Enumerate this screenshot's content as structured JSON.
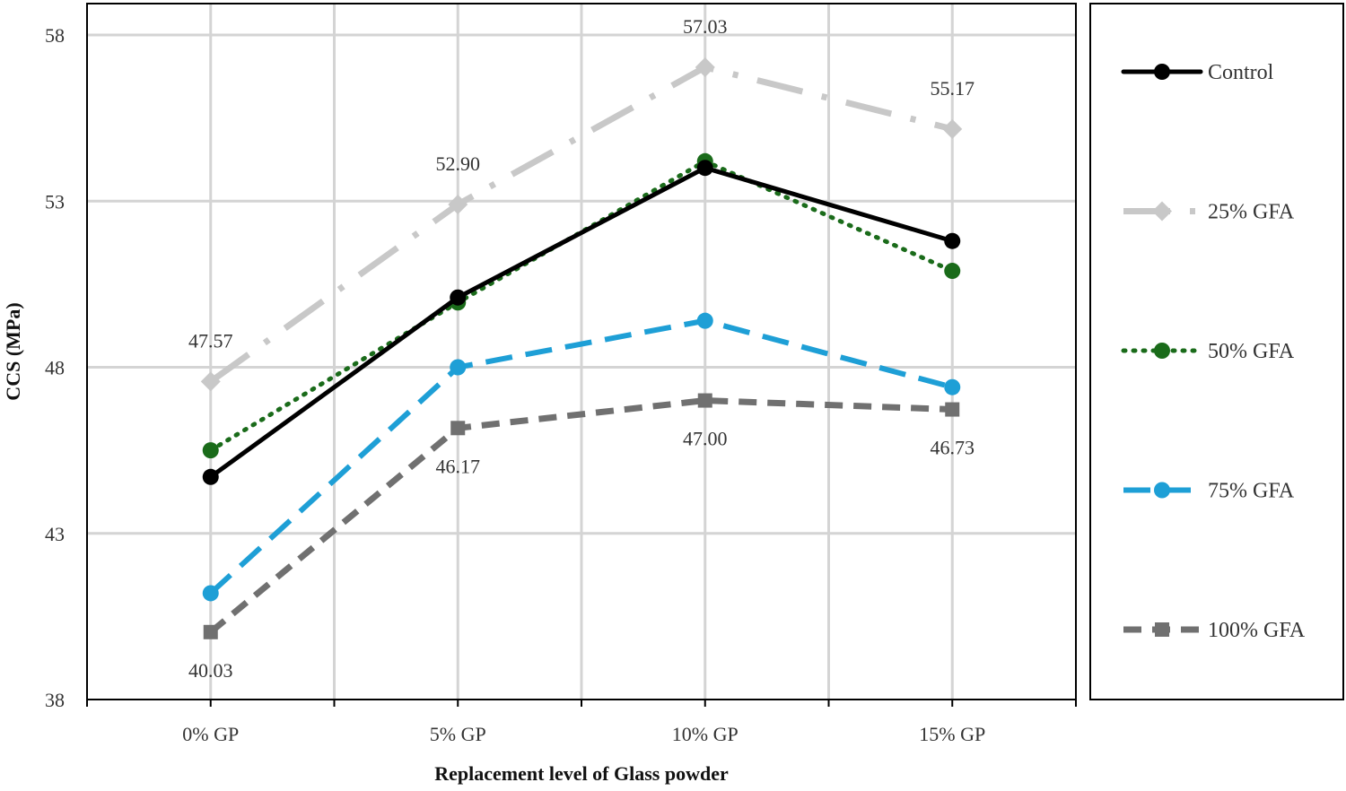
{
  "chart_data": {
    "type": "line",
    "title": "",
    "xlabel": "Replacement level of Glass powder",
    "ylabel": "CCS (MPa)",
    "ylim": [
      38,
      58
    ],
    "yticks": [
      38,
      43,
      48,
      53,
      58
    ],
    "ytick_labels": [
      "38",
      "43",
      "48",
      "53",
      "58"
    ],
    "grid": true,
    "legend_position": "right",
    "categories": [
      "0% GP",
      "5% GP",
      "10% GP",
      "15% GP"
    ],
    "series": [
      {
        "name": "Control",
        "values": [
          44.7,
          50.1,
          54.0,
          51.8
        ],
        "color": "#000000",
        "marker": "circle",
        "dash": "solid"
      },
      {
        "name": "25% GFA",
        "values": [
          47.57,
          52.9,
          57.03,
          55.17
        ],
        "color": "#c8c8c8",
        "marker": "diamond",
        "dash": "dashdot"
      },
      {
        "name": "50% GFA",
        "values": [
          45.5,
          49.95,
          54.2,
          50.9
        ],
        "color": "#1a6b1a",
        "marker": "circle",
        "dash": "dotted"
      },
      {
        "name": "75% GFA",
        "values": [
          41.2,
          48.0,
          49.4,
          47.4
        ],
        "color": "#1e9fd6",
        "marker": "circle",
        "dash": "dashed"
      },
      {
        "name": "100% GFA",
        "values": [
          40.03,
          46.17,
          47.0,
          46.73
        ],
        "color": "#707070",
        "marker": "square",
        "dash": "dashed-short"
      }
    ],
    "data_labels": [
      {
        "series": "25% GFA",
        "index": 0,
        "text": "47.57",
        "placement": "above"
      },
      {
        "series": "25% GFA",
        "index": 1,
        "text": "52.90",
        "placement": "above"
      },
      {
        "series": "25% GFA",
        "index": 2,
        "text": "57.03",
        "placement": "above"
      },
      {
        "series": "25% GFA",
        "index": 3,
        "text": "55.17",
        "placement": "above"
      },
      {
        "series": "100% GFA",
        "index": 0,
        "text": "40.03",
        "placement": "below"
      },
      {
        "series": "100% GFA",
        "index": 1,
        "text": "46.17",
        "placement": "below"
      },
      {
        "series": "100% GFA",
        "index": 2,
        "text": "47.00",
        "placement": "below"
      },
      {
        "series": "100% GFA",
        "index": 3,
        "text": "46.73",
        "placement": "below"
      }
    ]
  }
}
